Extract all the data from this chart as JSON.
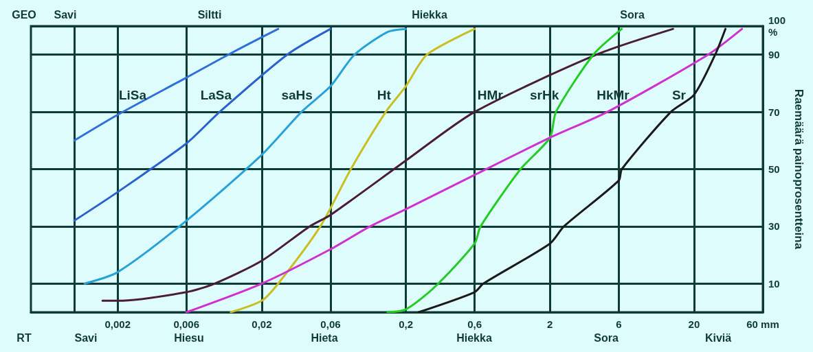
{
  "chart_data": {
    "type": "line",
    "ylabel": "Raemäärä painoprosentteina",
    "log": "x",
    "grid": true,
    "marker": "none",
    "xlim": [
      0.0005,
      60
    ],
    "ylim": [
      0,
      100
    ],
    "xticks": [
      {
        "value": 0.001,
        "label": null
      },
      {
        "value": 0.002,
        "label": "0,002"
      },
      {
        "value": 0.006,
        "label": "0,006"
      },
      {
        "value": 0.02,
        "label": "0,02"
      },
      {
        "value": 0.06,
        "label": "0,06"
      },
      {
        "value": 0.2,
        "label": "0,2"
      },
      {
        "value": 0.6,
        "label": "0,6"
      },
      2,
      6,
      20,
      {
        "value": 60,
        "label": "60 mm"
      }
    ],
    "yticks": [
      10,
      30,
      50,
      70,
      90,
      {
        "value": 100,
        "label": "100\n%"
      }
    ],
    "series": [
      {
        "name": "LiSa",
        "color": "#2f6fd8",
        "x": [
          0.001,
          0.002,
          0.006,
          0.0117,
          0.026
        ],
        "values": [
          60,
          69,
          82,
          90,
          99
        ]
      },
      {
        "name": "LaSa",
        "color": "#2a62cc",
        "x": [
          0.001,
          0.002,
          0.006,
          0.0102,
          0.03,
          0.06
        ],
        "values": [
          32,
          42,
          59,
          70,
          90,
          99
        ]
      },
      {
        "name": "saHs",
        "color": "#27a2d8",
        "x": [
          0.00118,
          0.002,
          0.006,
          0.02,
          0.0377,
          0.06,
          0.088,
          0.15,
          0.2
        ],
        "values": [
          10,
          14,
          32,
          55,
          70,
          79,
          90,
          98,
          99
        ]
      },
      {
        "name": "Ht",
        "color": "#c9bf22",
        "x": [
          0.0122,
          0.02,
          0.026,
          0.051,
          0.083,
          0.145,
          0.2,
          0.28,
          0.6
        ],
        "values": [
          0,
          4,
          10,
          30,
          50,
          70,
          79,
          90,
          99
        ]
      },
      {
        "name": "HMr",
        "color": "#4a1c3c",
        "x": [
          0.00157,
          0.002,
          0.006,
          0.0094,
          0.02,
          0.043,
          0.06,
          0.2,
          0.6,
          4.2,
          14.3
        ],
        "values": [
          4,
          4,
          7,
          10,
          18,
          30,
          34,
          53,
          70,
          90,
          99
        ]
      },
      {
        "name": "srHk",
        "color": "#22cc22",
        "x": [
          0.149,
          0.2,
          0.32,
          0.6,
          0.66,
          1.25,
          2,
          2.2,
          4,
          6.3
        ],
        "values": [
          0,
          1,
          9,
          24,
          30,
          50,
          61,
          70,
          90,
          99
        ]
      },
      {
        "name": "HkMr",
        "color": "#d030d0",
        "x": [
          0.006,
          0.02,
          0.06,
          0.113,
          0.2,
          0.6,
          2,
          5,
          25,
          43
        ],
        "values": [
          0,
          10,
          22,
          30,
          36,
          48,
          61,
          70,
          90,
          99
        ]
      },
      {
        "name": "Sr",
        "color": "#1a1a1a",
        "x": [
          0.245,
          0.6,
          0.69,
          2,
          2.5,
          6,
          6.3,
          13.8,
          20,
          28,
          33
        ],
        "values": [
          0,
          7,
          10,
          24,
          30,
          46,
          50,
          70,
          76,
          90,
          99
        ]
      }
    ],
    "annotations": [
      "GEO",
      "Savi",
      "Siltti",
      "Hiekka",
      "Sora",
      "RT",
      "Savi",
      "Hiesu",
      "Hieta",
      "Hiekka",
      "Sora",
      "Kiviä"
    ]
  }
}
